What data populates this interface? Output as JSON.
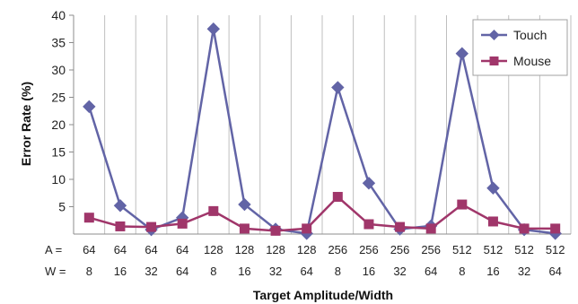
{
  "chart_data": {
    "type": "line",
    "xlabel": "Target Amplitude/Width",
    "ylabel": "Error Rate (%)",
    "ylim": [
      0,
      40
    ],
    "yticks": [
      5,
      10,
      15,
      20,
      25,
      30,
      35,
      40
    ],
    "grid": "vertical",
    "legend_position": "top-right",
    "row_labels": {
      "amplitude": "A =",
      "width": "W ="
    },
    "categories": [
      {
        "A": "64",
        "W": "8"
      },
      {
        "A": "64",
        "W": "16"
      },
      {
        "A": "64",
        "W": "32"
      },
      {
        "A": "64",
        "W": "64"
      },
      {
        "A": "128",
        "W": "8"
      },
      {
        "A": "128",
        "W": "16"
      },
      {
        "A": "128",
        "W": "32"
      },
      {
        "A": "128",
        "W": "64"
      },
      {
        "A": "256",
        "W": "8"
      },
      {
        "A": "256",
        "W": "16"
      },
      {
        "A": "256",
        "W": "32"
      },
      {
        "A": "256",
        "W": "64"
      },
      {
        "A": "512",
        "W": "8"
      },
      {
        "A": "512",
        "W": "16"
      },
      {
        "A": "512",
        "W": "32"
      },
      {
        "A": "512",
        "W": "64"
      }
    ],
    "series": [
      {
        "name": "Touch",
        "marker": "diamond",
        "color": "#6264a6",
        "values": [
          23.3,
          5.2,
          0.8,
          3.0,
          37.5,
          5.4,
          0.9,
          0.1,
          26.8,
          9.3,
          0.9,
          1.5,
          33.0,
          8.4,
          0.8,
          0.1
        ]
      },
      {
        "name": "Mouse",
        "marker": "square",
        "color": "#a0366a",
        "values": [
          3.0,
          1.4,
          1.3,
          1.9,
          4.2,
          1.0,
          0.6,
          1.0,
          6.8,
          1.8,
          1.3,
          1.0,
          5.4,
          2.3,
          1.0,
          1.0
        ]
      }
    ]
  }
}
